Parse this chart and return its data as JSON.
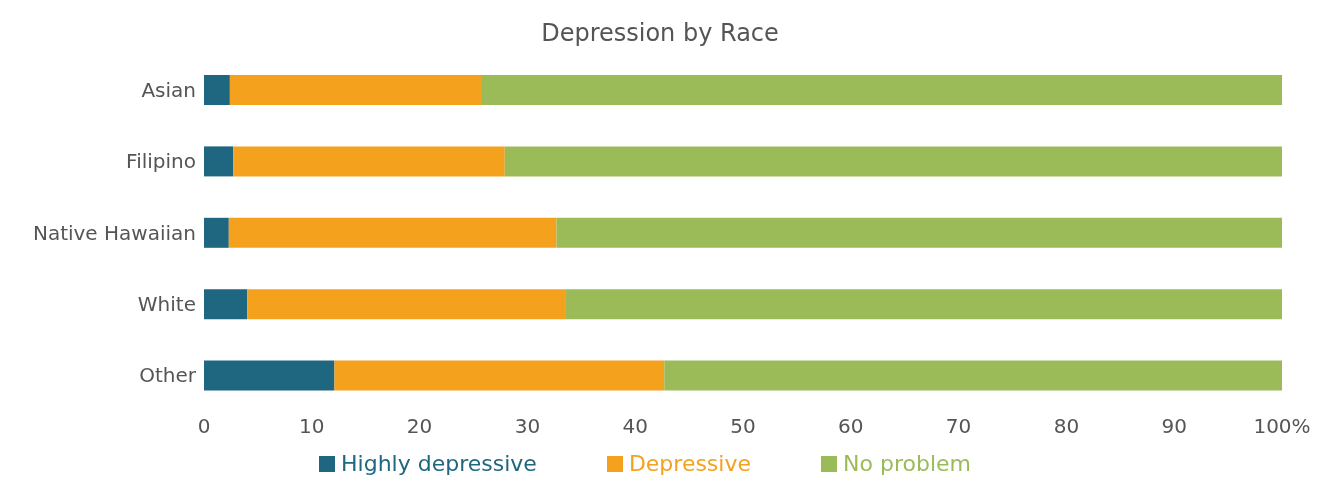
{
  "chart_data": {
    "type": "bar",
    "title": "Depression by Race",
    "orientation": "horizontal",
    "stacked": true,
    "categories": [
      "Asian",
      "Filipino",
      "Native Hawaiian",
      "White",
      "Other"
    ],
    "series": [
      {
        "name": "Highly depressive",
        "color": "#1f6680",
        "values": [
          2.4,
          2.7,
          2.3,
          4.0,
          12.1
        ]
      },
      {
        "name": "Depressive",
        "color": "#f4a11d",
        "values": [
          23.3,
          25.2,
          30.4,
          29.5,
          30.6
        ]
      },
      {
        "name": "No problem",
        "color": "#9bbb59",
        "values": [
          74.3,
          72.1,
          67.3,
          66.5,
          57.3
        ]
      }
    ],
    "xlim": [
      0,
      100
    ],
    "xticks": [
      0,
      10,
      20,
      30,
      40,
      50,
      60,
      70,
      80,
      90,
      {
        "value": 100,
        "label": "100%"
      }
    ],
    "legend": "bottom"
  }
}
